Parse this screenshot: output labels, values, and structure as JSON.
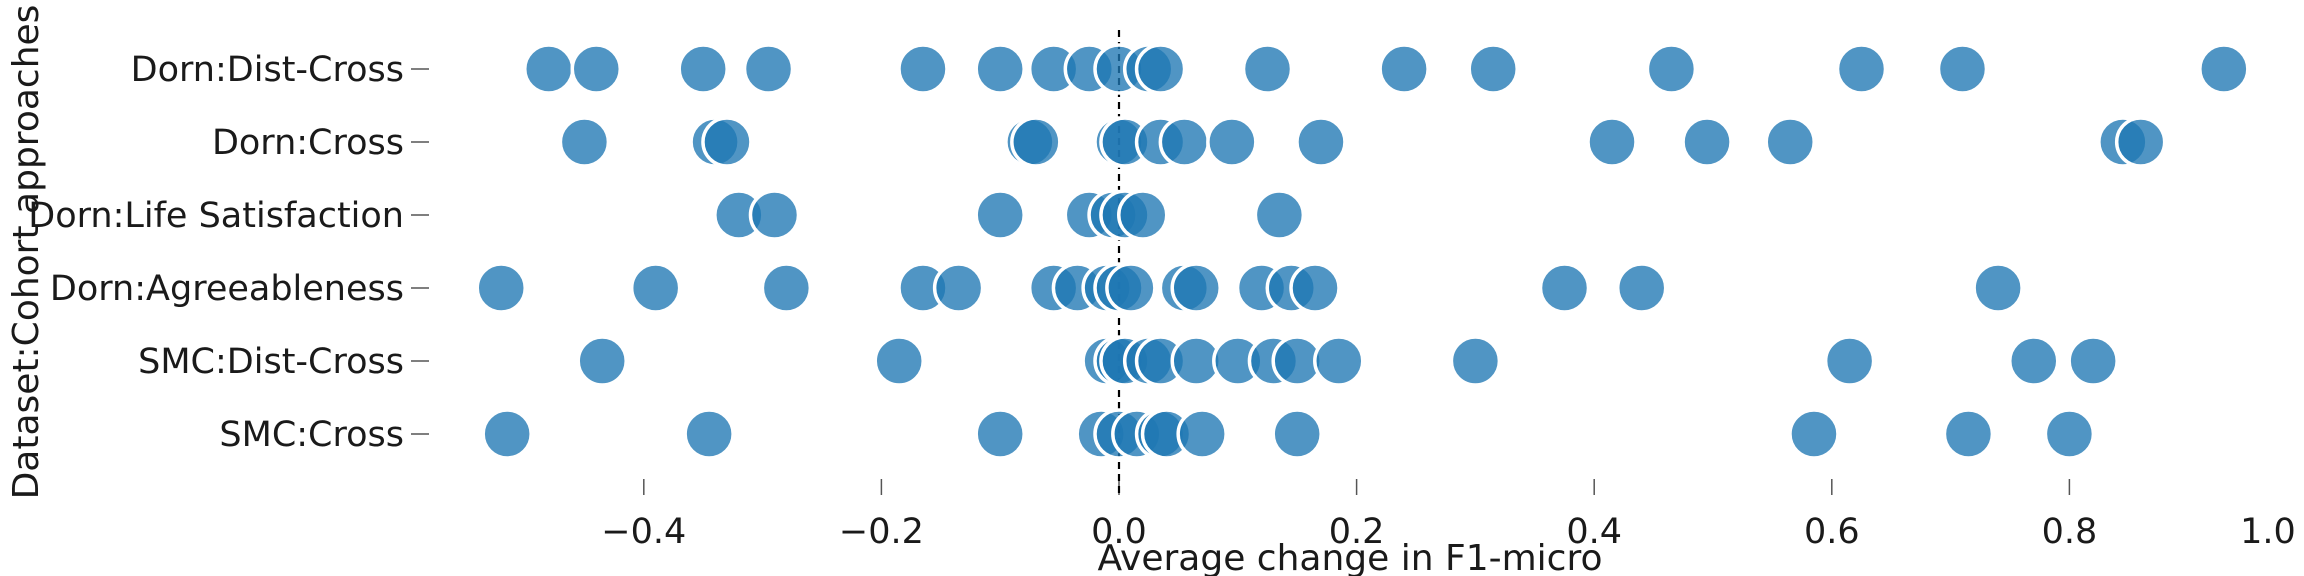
{
  "chart_data": {
    "type": "scatter",
    "xlabel": "Average change in F1-micro",
    "ylabel": "Dataset:Cohort approaches",
    "xlim": [
      -0.55,
      1.0
    ],
    "xticks": [
      -0.4,
      -0.2,
      0.0,
      0.2,
      0.4,
      0.6,
      0.8,
      1.0
    ],
    "xtick_labels": [
      "−0.4",
      "−0.2",
      "0.0",
      "0.2",
      "0.4",
      "0.6",
      "0.8",
      "1.0"
    ],
    "reference_line": {
      "x": 0.0,
      "style": "dashed"
    },
    "grid": false,
    "legend": "none",
    "color": "#1f77b4",
    "series": [
      {
        "name": "Dorn:Dist-Cross",
        "values": [
          -0.48,
          -0.44,
          -0.35,
          -0.295,
          -0.165,
          -0.1,
          -0.055,
          -0.025,
          0.0,
          0.025,
          0.035,
          0.125,
          0.24,
          0.315,
          0.465,
          0.625,
          0.71,
          0.93
        ]
      },
      {
        "name": "Dorn:Cross",
        "values": [
          -0.45,
          -0.34,
          -0.33,
          -0.075,
          -0.07,
          0.0,
          0.005,
          0.035,
          0.055,
          0.095,
          0.17,
          0.415,
          0.495,
          0.565,
          0.845,
          0.86
        ]
      },
      {
        "name": "Dorn:Life Satisfaction",
        "values": [
          -0.32,
          -0.29,
          -0.1,
          -0.025,
          -0.005,
          0.005,
          0.02,
          0.135
        ]
      },
      {
        "name": "Dorn:Agreeableness",
        "values": [
          -0.52,
          -0.39,
          -0.28,
          -0.165,
          -0.135,
          -0.055,
          -0.035,
          -0.01,
          0.0,
          0.01,
          0.055,
          0.065,
          0.12,
          0.145,
          0.165,
          0.375,
          0.44,
          0.74
        ]
      },
      {
        "name": "SMC:Dist-Cross",
        "values": [
          -0.435,
          -0.185,
          -0.01,
          0.0,
          0.005,
          0.025,
          0.035,
          0.065,
          0.1,
          0.13,
          0.15,
          0.185,
          0.3,
          0.615,
          0.77,
          0.82
        ]
      },
      {
        "name": "SMC:Cross",
        "values": [
          -0.515,
          -0.345,
          -0.1,
          -0.015,
          0.0,
          0.015,
          0.035,
          0.04,
          0.07,
          0.15,
          0.585,
          0.715,
          0.8
        ]
      }
    ]
  }
}
